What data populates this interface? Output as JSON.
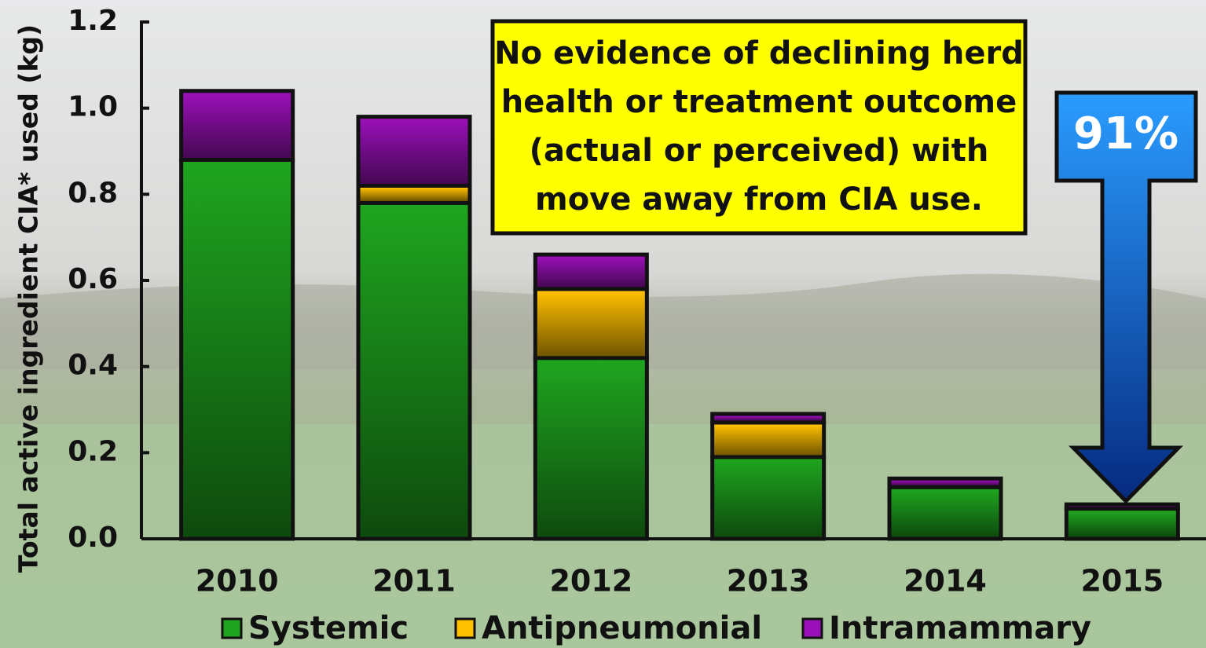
{
  "chart_data": {
    "type": "stacked_bar",
    "y_label": "Total active ingredient CIA* used (kg)",
    "categories": [
      "2010",
      "2011",
      "2012",
      "2013",
      "2014",
      "2015"
    ],
    "series": [
      {
        "name": "Systemic",
        "color": "#1fa51f",
        "values": [
          0.88,
          0.78,
          0.42,
          0.19,
          0.12,
          0.07
        ]
      },
      {
        "name": "Antipneumonial",
        "color": "#ffc000",
        "values": [
          0,
          0.04,
          0.16,
          0.08,
          0,
          0
        ]
      },
      {
        "name": "Intramammary",
        "color": "#9a10b8",
        "values": [
          0.16,
          0.16,
          0.08,
          0.02,
          0.02,
          0.01
        ]
      }
    ],
    "ylim": [
      0,
      1.2
    ],
    "yticks": [
      {
        "value": 0,
        "label": "0.0"
      },
      0.2,
      0.4,
      0.6,
      0.8,
      {
        "value": 1,
        "label": "1.0"
      },
      1.2
    ],
    "annotation": [
      "No evidence of declining herd",
      "health or treatment outcome",
      "(actual or perceived) with",
      "move away from CIA use."
    ],
    "arrow_label": "91%"
  }
}
